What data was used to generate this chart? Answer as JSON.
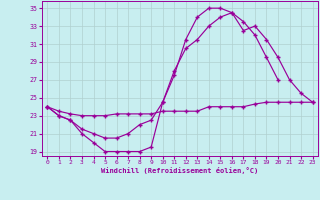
{
  "xlabel": "Windchill (Refroidissement éolien,°C)",
  "bg_color": "#c8eef0",
  "line_color": "#990099",
  "grid_color": "#b0d0d0",
  "xlim_min": -0.5,
  "xlim_max": 23.5,
  "ylim_min": 18.5,
  "ylim_max": 35.8,
  "yticks": [
    19,
    21,
    23,
    25,
    27,
    29,
    31,
    33,
    35
  ],
  "xticks": [
    0,
    1,
    2,
    3,
    4,
    5,
    6,
    7,
    8,
    9,
    10,
    11,
    12,
    13,
    14,
    15,
    16,
    17,
    18,
    19,
    20,
    21,
    22,
    23
  ],
  "curve1_x": [
    0,
    1,
    2,
    3,
    4,
    5,
    6,
    7,
    8,
    9,
    10,
    11,
    12,
    13,
    14,
    15,
    16,
    17,
    18,
    19,
    20
  ],
  "curve1_y": [
    24.0,
    23.0,
    22.5,
    21.0,
    20.0,
    19.0,
    19.0,
    19.0,
    19.0,
    19.5,
    24.5,
    27.5,
    31.5,
    34.0,
    35.0,
    35.0,
    34.5,
    33.5,
    32.0,
    29.5,
    27.0
  ],
  "curve2_x": [
    0,
    1,
    2,
    3,
    4,
    5,
    6,
    7,
    8,
    9,
    10,
    11,
    12,
    13,
    14,
    15,
    16,
    17,
    18,
    19,
    20,
    21,
    22,
    23
  ],
  "curve2_y": [
    24.0,
    23.0,
    22.5,
    21.5,
    21.0,
    20.5,
    20.5,
    21.0,
    22.0,
    22.5,
    24.5,
    28.0,
    30.5,
    31.5,
    33.0,
    34.0,
    34.5,
    32.5,
    33.0,
    31.5,
    29.5,
    27.0,
    25.5,
    24.5
  ],
  "curve3_x": [
    0,
    1,
    2,
    3,
    4,
    5,
    6,
    7,
    8,
    9,
    10,
    11,
    12,
    13,
    14,
    15,
    16,
    17,
    18,
    19,
    20,
    21,
    22,
    23
  ],
  "curve3_y": [
    24.0,
    23.5,
    23.2,
    23.0,
    23.0,
    23.0,
    23.2,
    23.2,
    23.2,
    23.2,
    23.5,
    23.5,
    23.5,
    23.5,
    24.0,
    24.0,
    24.0,
    24.0,
    24.3,
    24.5,
    24.5,
    24.5,
    24.5,
    24.5
  ]
}
